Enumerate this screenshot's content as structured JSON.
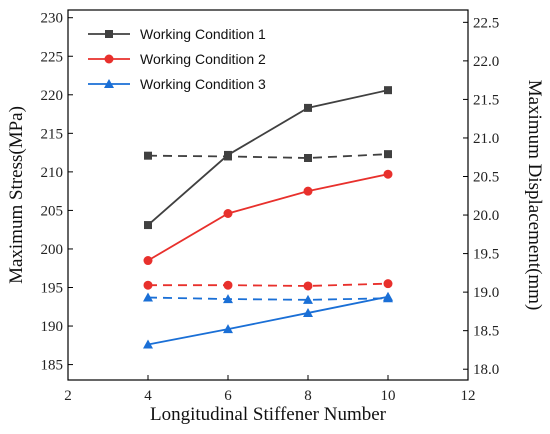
{
  "chart_data": {
    "type": "line",
    "title": "",
    "xlabel": "Longitudinal Stiffener Number",
    "ylabel_left": "Maximum Stress(MPa)",
    "ylabel_right": "Maximum Displacement(mm)",
    "x": [
      4,
      6,
      8,
      10
    ],
    "xlim": [
      2,
      12
    ],
    "xticks": [
      "2",
      "4",
      "6",
      "8",
      "10",
      "12"
    ],
    "ylim_left": [
      183,
      231
    ],
    "yticks_left": [
      "185",
      "190",
      "195",
      "200",
      "205",
      "210",
      "215",
      "220",
      "225",
      "230"
    ],
    "ylim_right": [
      17.86,
      22.66
    ],
    "yticks_right": [
      "18.0",
      "18.5",
      "19.0",
      "19.5",
      "20.0",
      "20.5",
      "21.0",
      "21.5",
      "22.0",
      "22.5"
    ],
    "grid": false,
    "legend_position": "top-left",
    "series": [
      {
        "name": "Working Condition 1",
        "color": "#404040",
        "marker": "square",
        "stress": [
          203.1,
          212.2,
          218.3,
          220.6
        ],
        "displacement": [
          20.77,
          20.76,
          20.74,
          20.79
        ]
      },
      {
        "name": "Working Condition 2",
        "color": "#e8302c",
        "marker": "circle",
        "stress": [
          198.5,
          204.6,
          207.5,
          209.7
        ],
        "displacement": [
          19.09,
          19.09,
          19.08,
          19.11
        ]
      },
      {
        "name": "Working Condition 3",
        "color": "#1a6fd6",
        "marker": "triangle",
        "stress": [
          187.6,
          189.6,
          191.7,
          193.8
        ],
        "displacement": [
          18.93,
          18.91,
          18.9,
          18.92
        ]
      }
    ]
  }
}
